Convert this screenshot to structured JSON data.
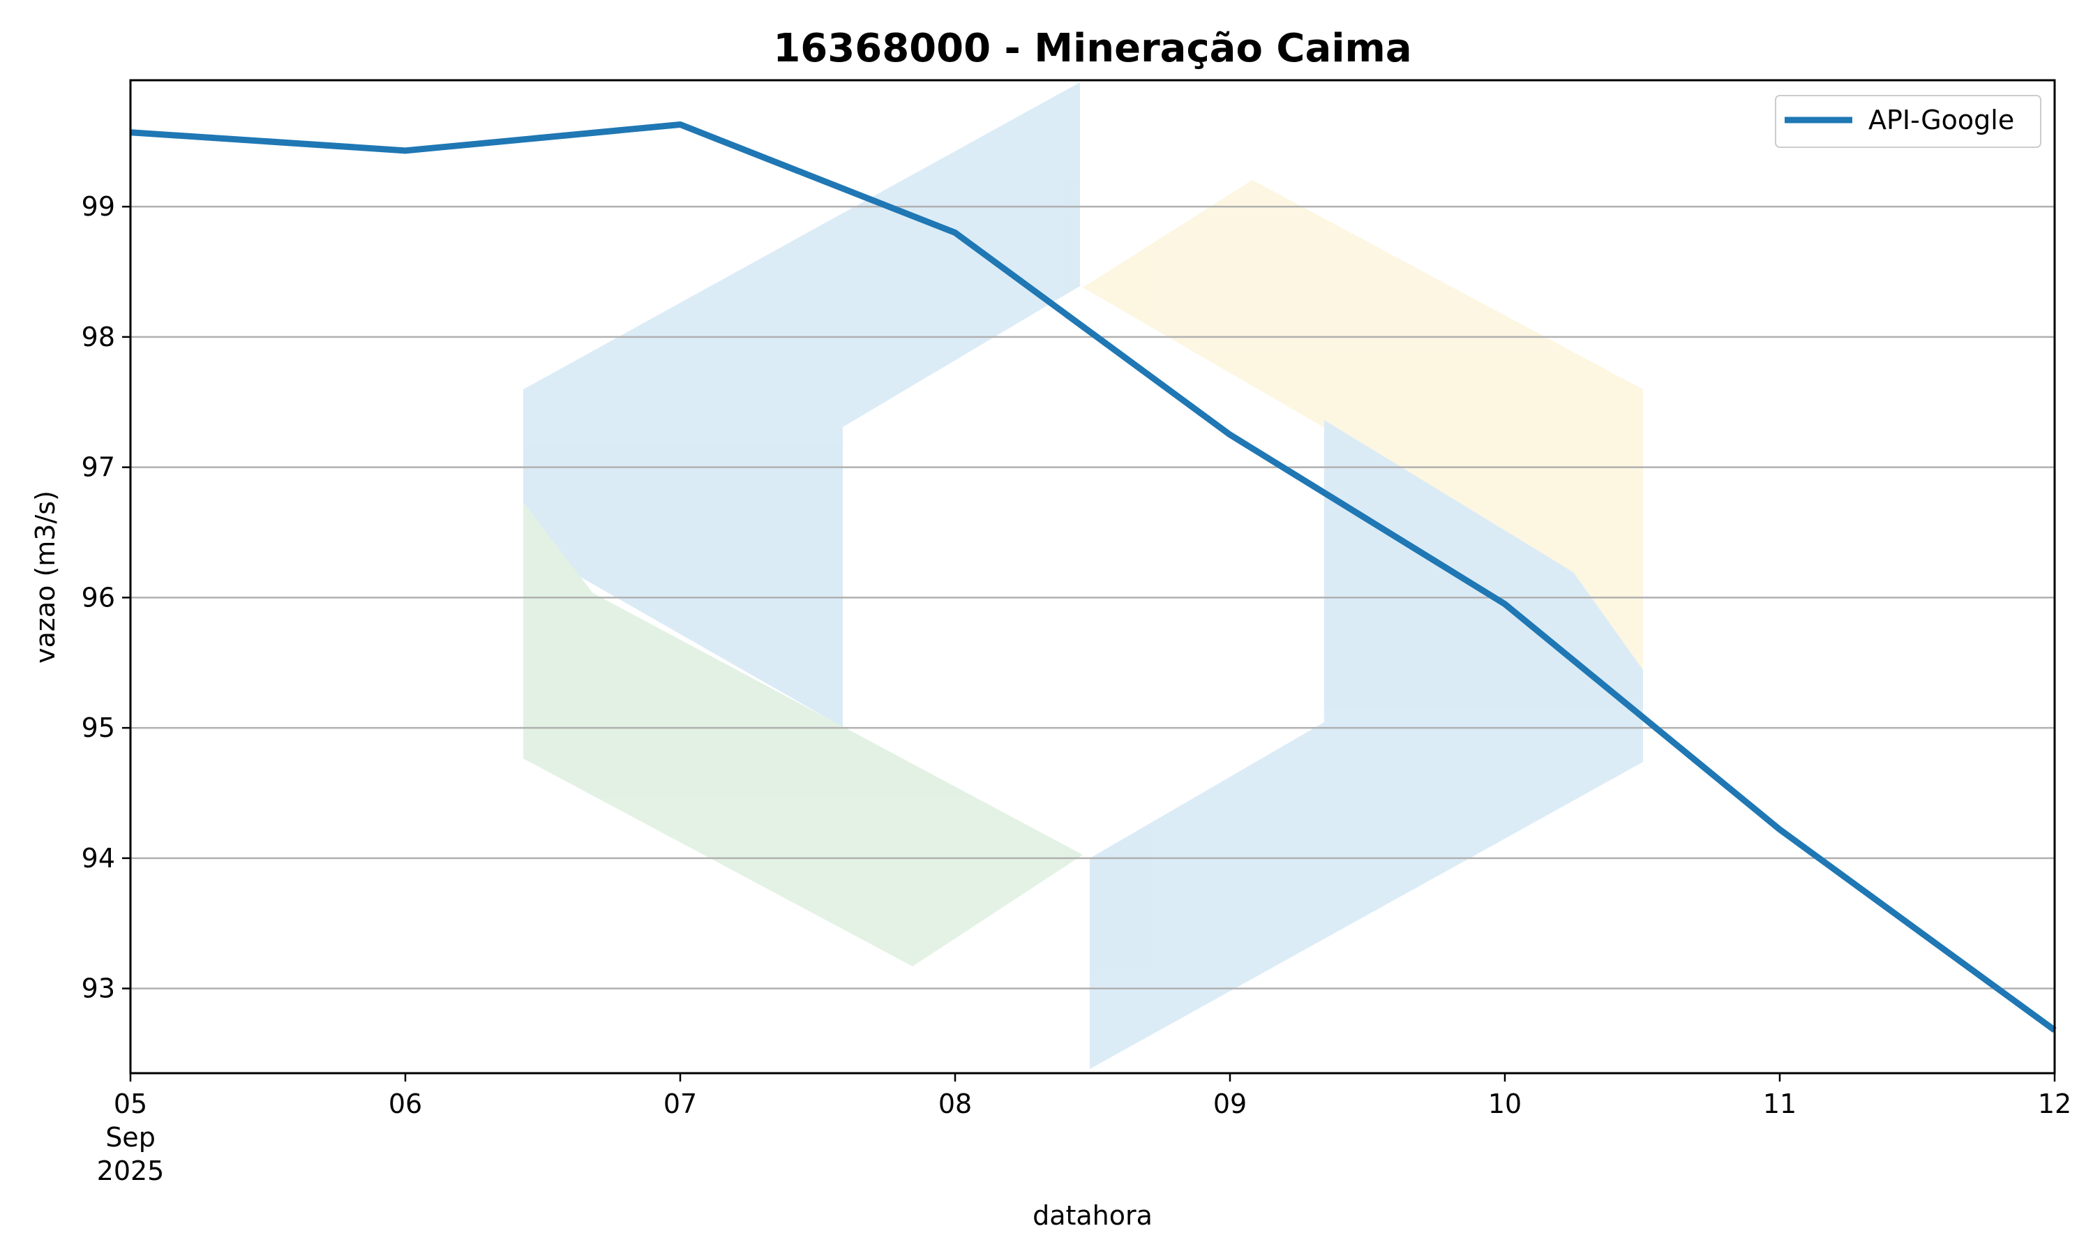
{
  "chart_data": {
    "type": "line",
    "title": "16368000 - Mineração Caima",
    "xlabel": "datahora",
    "ylabel": "vazao (m3/s)",
    "x": [
      "2025-09-05",
      "2025-09-06",
      "2025-09-07",
      "2025-09-08",
      "2025-09-09",
      "2025-09-10",
      "2025-09-11",
      "2025-09-12"
    ],
    "x_tick_labels": [
      "05",
      "06",
      "07",
      "08",
      "09",
      "10",
      "11",
      "12"
    ],
    "x_tick_sublabels": [
      "Sep",
      "2025"
    ],
    "xlim": [
      "2025-09-05",
      "2025-09-12"
    ],
    "ylim": [
      92.35,
      99.97
    ],
    "y_ticks": [
      93,
      94,
      95,
      96,
      97,
      98,
      99
    ],
    "grid": "y",
    "legend_position": "top-right",
    "series": [
      {
        "name": "API-Google",
        "color": "#1f77b4",
        "values": [
          99.57,
          99.43,
          99.63,
          98.8,
          97.25,
          95.95,
          94.22,
          92.68
        ]
      }
    ]
  }
}
